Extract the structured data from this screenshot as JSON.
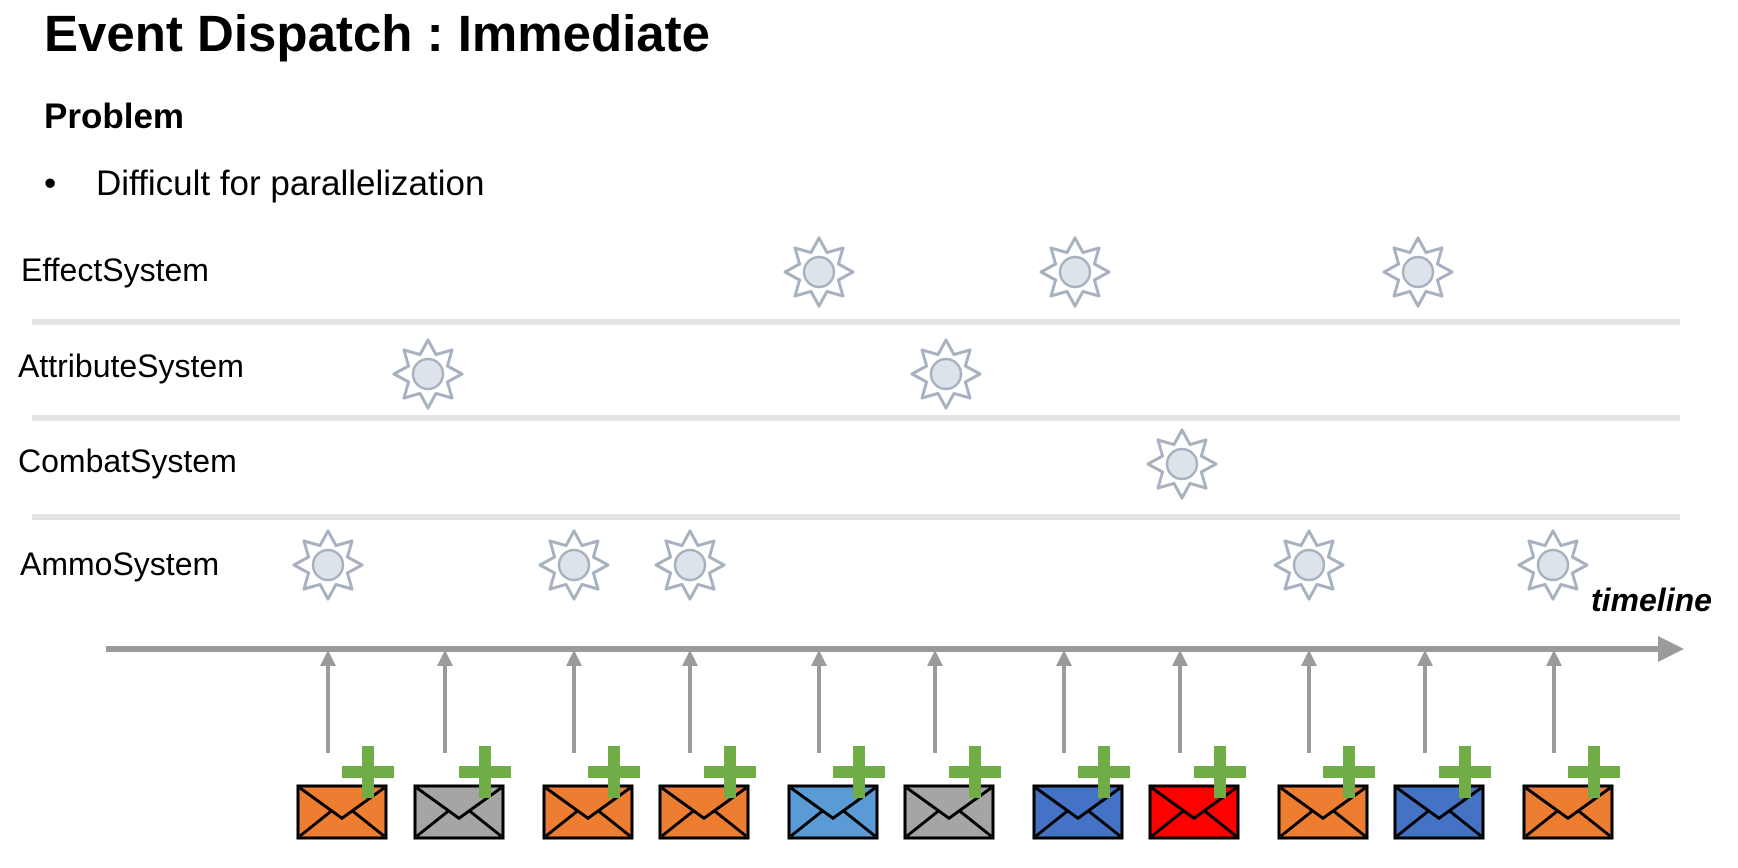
{
  "title": "Event Dispatch : Immediate",
  "section": {
    "heading": "Problem",
    "bullets": [
      "Difficult for parallelization"
    ]
  },
  "lanes": [
    {
      "label": "EffectSystem",
      "event_slots": [
        5,
        7,
        10
      ]
    },
    {
      "label": "AttributeSystem",
      "event_slots": [
        1,
        6
      ]
    },
    {
      "label": "CombatSystem",
      "event_slots": [
        8
      ]
    },
    {
      "label": "AmmoSystem",
      "event_slots": [
        0,
        2,
        3,
        9,
        11
      ]
    }
  ],
  "timeline": {
    "label": "timeline"
  },
  "events": [
    {
      "color": "#ED7D31"
    },
    {
      "color": "#A5A5A5"
    },
    {
      "color": "#ED7D31"
    },
    {
      "color": "#ED7D31"
    },
    {
      "color": "#5B9BD5"
    },
    {
      "color": "#A5A5A5"
    },
    {
      "color": "#4472C4"
    },
    {
      "color": "#FF0000"
    },
    {
      "color": "#ED7D31"
    },
    {
      "color": "#4472C4"
    },
    {
      "color": "#ED7D31"
    }
  ],
  "colors": {
    "lane_divider": "#E3E3E3",
    "timeline_arrow": "#9B9B9B",
    "sun_fill": "#DDE3EB",
    "sun_stroke": "#A8B1BF",
    "plus": "#70AD47"
  },
  "icons": {
    "event_source": "envelope-icon",
    "event_add": "plus-icon",
    "handler": "sun-icon"
  }
}
